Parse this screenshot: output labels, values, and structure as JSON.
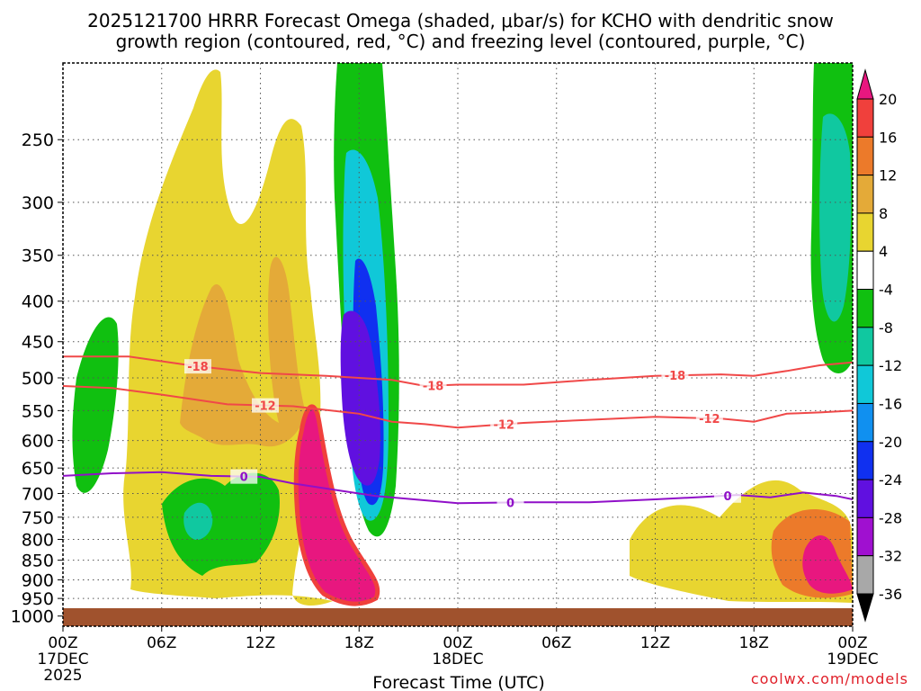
{
  "chart_data": {
    "type": "heatmap",
    "title_line1": "2025121700 HRRR Forecast Omega (shaded, μbar/s) for KCHO with dendritic snow",
    "title_line2": "growth region (contoured, red, °C) and freezing level (contoured, purple, °C)",
    "xlabel": "Forecast Time (UTC)",
    "x_hours": [
      0,
      48
    ],
    "x_ticks": [
      {
        "h": 0,
        "label": "00Z",
        "sub": "17DEC",
        "sub2": "2025"
      },
      {
        "h": 6,
        "label": "06Z"
      },
      {
        "h": 12,
        "label": "12Z"
      },
      {
        "h": 18,
        "label": "18Z"
      },
      {
        "h": 24,
        "label": "00Z",
        "sub": "18DEC"
      },
      {
        "h": 30,
        "label": "06Z"
      },
      {
        "h": 36,
        "label": "12Z"
      },
      {
        "h": 42,
        "label": "18Z"
      },
      {
        "h": 48,
        "label": "00Z",
        "sub": "19DEC"
      }
    ],
    "y_ticks": [
      250,
      300,
      350,
      400,
      450,
      500,
      550,
      600,
      650,
      700,
      750,
      800,
      850,
      900,
      950,
      1000
    ],
    "y_range_hpa": [
      1030,
      200
    ],
    "colorbar": {
      "levels": [
        20,
        16,
        12,
        8,
        4,
        -4,
        -8,
        -12,
        -16,
        -20,
        -24,
        -28,
        -32,
        -36
      ],
      "colors": [
        "#e8177f",
        "#f0403c",
        "#ec7a2a",
        "#e4aa38",
        "#e8d530",
        "#ffffff",
        "#10c010",
        "#10c8a0",
        "#10c8d8",
        "#1090f0",
        "#1030f0",
        "#6010e0",
        "#a010d0",
        "#a8a8a8",
        "#000000"
      ]
    },
    "contours": [
      {
        "name": "dgz-18",
        "label": "-18",
        "color": "#f04848",
        "label_h": [
          8.2,
          22.5,
          37.2
        ],
        "points": [
          [
            0,
            470
          ],
          [
            4,
            470
          ],
          [
            8,
            483
          ],
          [
            12,
            493
          ],
          [
            16,
            497
          ],
          [
            20,
            503
          ],
          [
            22,
            512
          ],
          [
            24,
            510
          ],
          [
            28,
            510
          ],
          [
            32,
            503
          ],
          [
            36,
            497
          ],
          [
            40,
            495
          ],
          [
            42,
            497
          ],
          [
            44,
            490
          ],
          [
            46,
            482
          ],
          [
            48,
            478
          ]
        ]
      },
      {
        "name": "dgz-12",
        "label": "-12",
        "color": "#f04848",
        "label_h": [
          12.3,
          26.8,
          39.3
        ],
        "points": [
          [
            0,
            512
          ],
          [
            3,
            515
          ],
          [
            6,
            525
          ],
          [
            10,
            540
          ],
          [
            14,
            543
          ],
          [
            18,
            555
          ],
          [
            20,
            568
          ],
          [
            22,
            572
          ],
          [
            24,
            578
          ],
          [
            28,
            570
          ],
          [
            32,
            565
          ],
          [
            36,
            560
          ],
          [
            40,
            563
          ],
          [
            42,
            568
          ],
          [
            44,
            555
          ],
          [
            46,
            553
          ],
          [
            48,
            550
          ]
        ]
      },
      {
        "name": "freezing-level",
        "label": "0",
        "color": "#9010c8",
        "label_h": [
          11.0,
          27.2,
          40.4
        ],
        "points": [
          [
            0,
            665
          ],
          [
            3,
            660
          ],
          [
            6,
            658
          ],
          [
            9,
            665
          ],
          [
            12,
            667
          ],
          [
            14,
            680
          ],
          [
            17,
            695
          ],
          [
            19,
            705
          ],
          [
            24,
            720
          ],
          [
            28,
            718
          ],
          [
            32,
            718
          ],
          [
            36,
            712
          ],
          [
            39,
            707
          ],
          [
            41,
            703
          ],
          [
            43,
            708
          ],
          [
            45,
            698
          ],
          [
            47,
            705
          ],
          [
            48,
            712
          ]
        ]
      }
    ],
    "source": "coolwx.com/models"
  }
}
